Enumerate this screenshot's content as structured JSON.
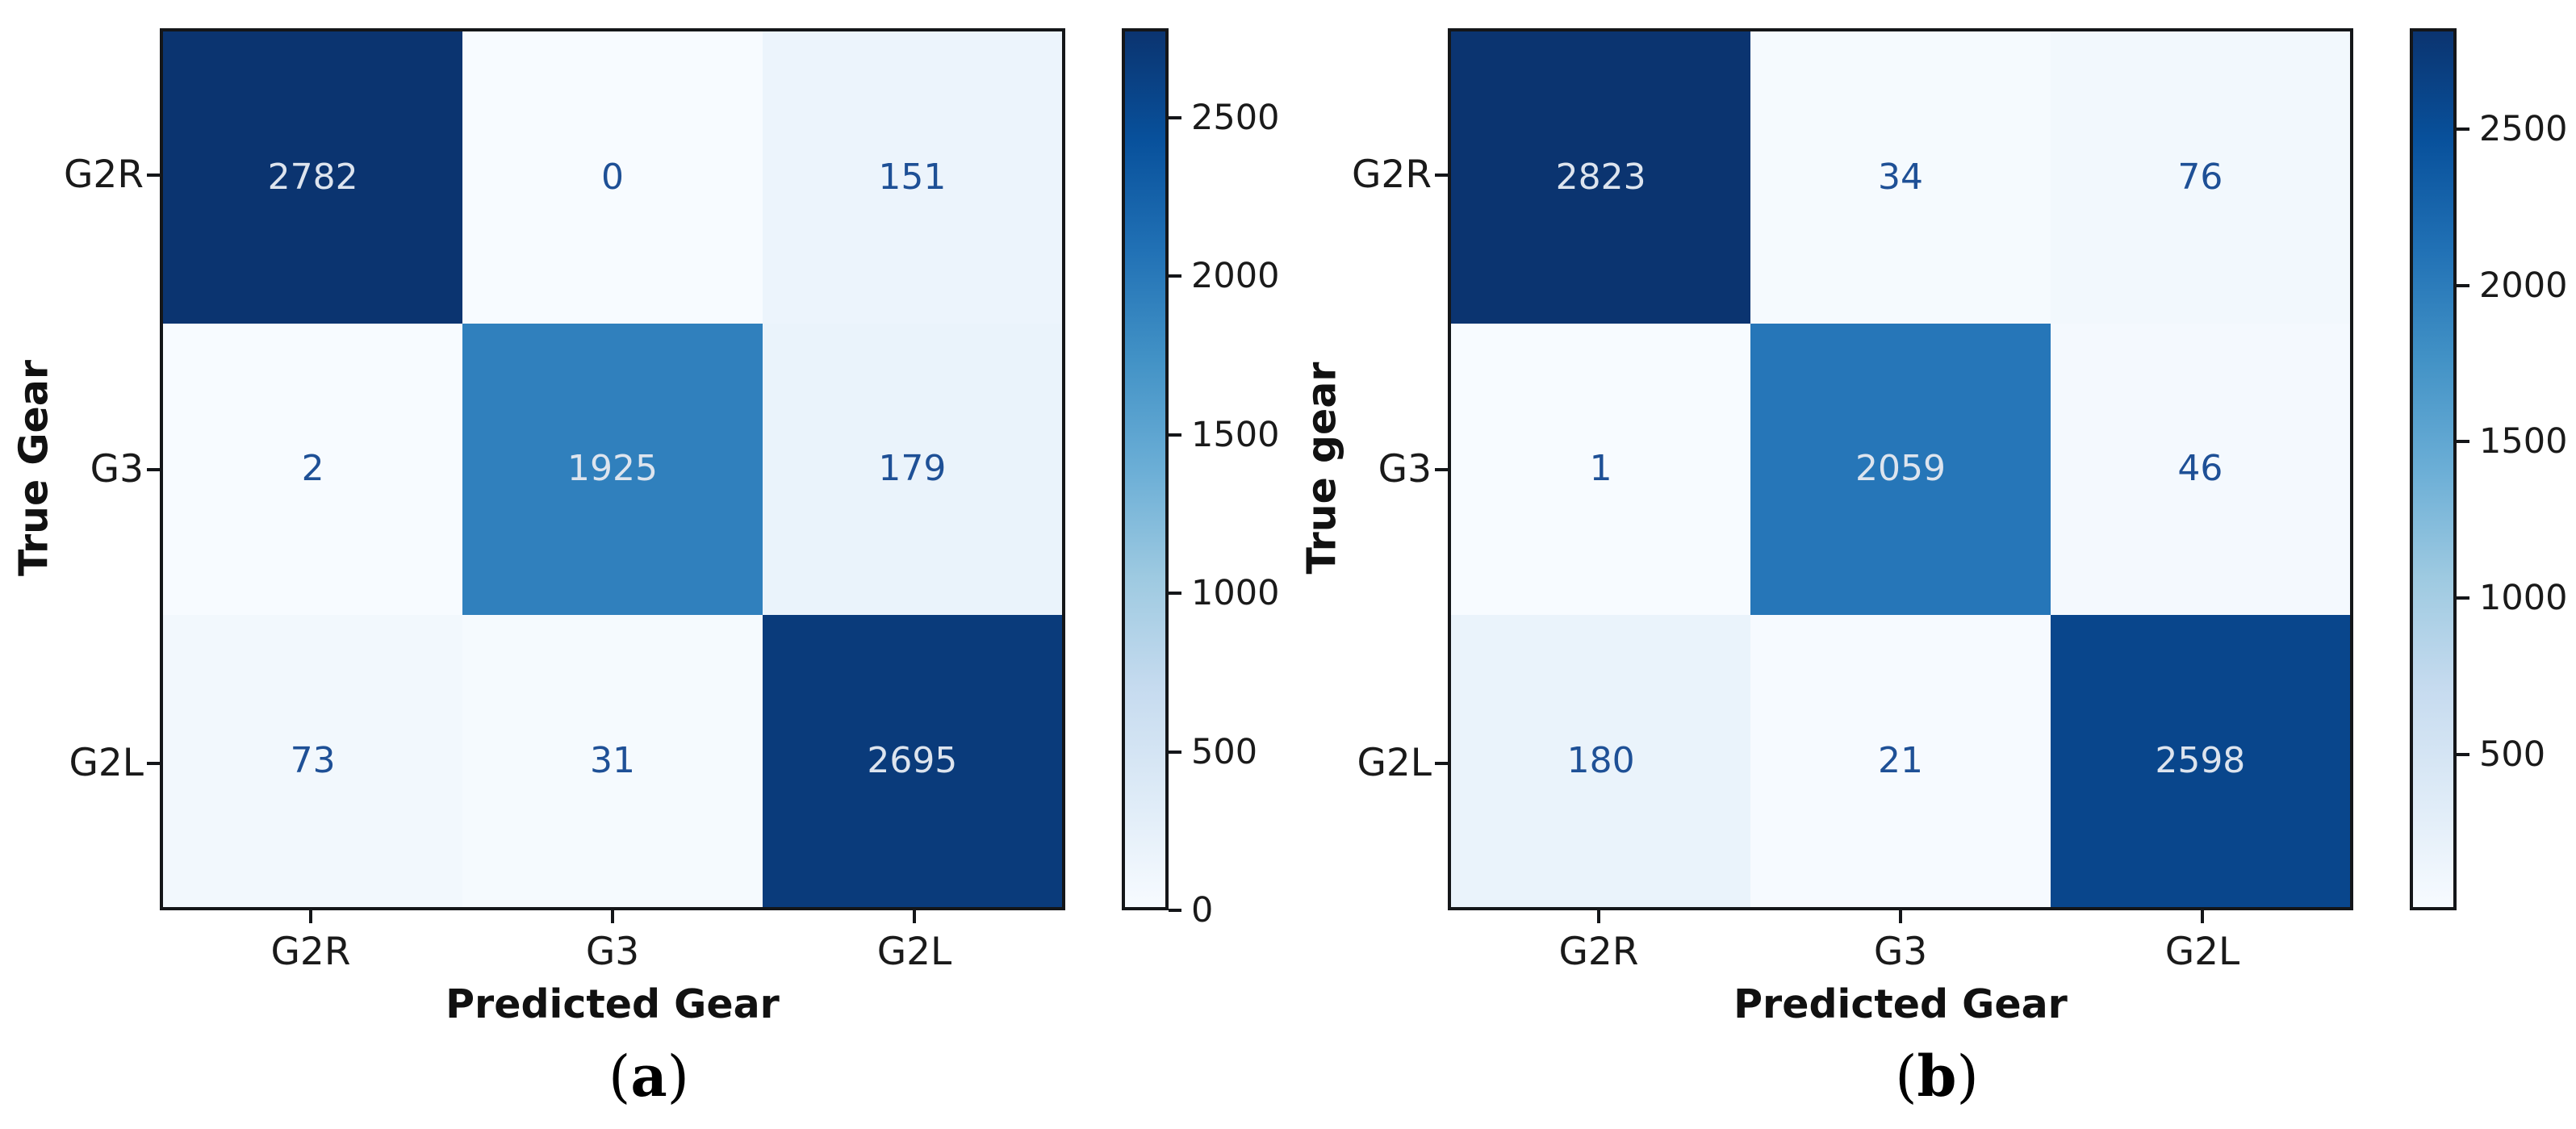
{
  "chart_data": [
    {
      "type": "heatmap",
      "panel": "a",
      "caption": {
        "open": "(",
        "letter": "a",
        "close": ")"
      },
      "xlabel": "Predicted Gear",
      "ylabel": "True Gear",
      "x_categories": [
        "G2R",
        "G3",
        "G2L"
      ],
      "y_categories": [
        "G2R",
        "G3",
        "G2L"
      ],
      "values": [
        [
          2782,
          0,
          151
        ],
        [
          2,
          1925,
          179
        ],
        [
          73,
          31,
          2695
        ]
      ],
      "vmin": 0,
      "vmax": 2782,
      "colorbar_ticks": [
        0,
        500,
        1000,
        1500,
        2000,
        2500
      ],
      "colormap": "Blues",
      "legend_position": "right-colorbar",
      "grid": false
    },
    {
      "type": "heatmap",
      "panel": "b",
      "caption": {
        "open": "(",
        "letter": "b",
        "close": ")"
      },
      "xlabel": "Predicted Gear",
      "ylabel": "True gear",
      "x_categories": [
        "G2R",
        "G3",
        "G2L"
      ],
      "y_categories": [
        "G2R",
        "G3",
        "G2L"
      ],
      "values": [
        [
          2823,
          34,
          76
        ],
        [
          1,
          2059,
          46
        ],
        [
          180,
          21,
          2598
        ]
      ],
      "vmin": 1,
      "vmax": 2823,
      "colorbar_ticks": [
        500,
        1000,
        1500,
        2000,
        2500
      ],
      "colormap": "Blues",
      "legend_position": "right-colorbar",
      "grid": false
    }
  ],
  "style": {
    "background": "#ffffff",
    "spine_color": "#141619",
    "tick_label_color": "#1a1a1a",
    "annotation_dark": "#1e5096",
    "annotation_light": "#dde4ee",
    "colormap_stops": [
      "#f7fbff",
      "#deebf7",
      "#c6dbef",
      "#9ecae1",
      "#6baed6",
      "#4292c6",
      "#2171b5",
      "#08519c",
      "#0b3470"
    ]
  }
}
